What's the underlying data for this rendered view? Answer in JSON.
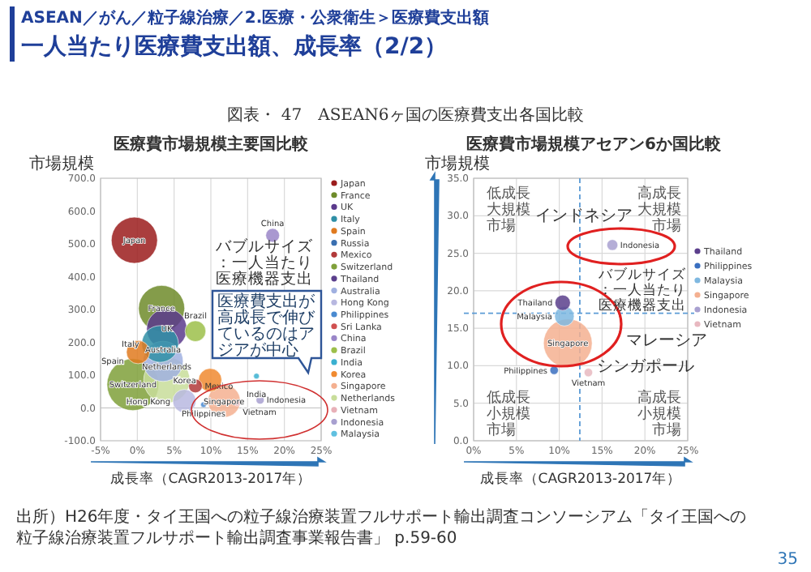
{
  "chart_data": [
    {
      "type": "bubble",
      "title": "医療費市場規模主要国比較",
      "xlabel": "成長率（CAGR2013-2017年）",
      "ylabel": "市場規模",
      "xlim": [
        -5,
        25
      ],
      "xticks": [
        {
          "value": -5,
          "label": "-5%"
        },
        {
          "value": 0,
          "label": "0%"
        },
        {
          "value": 5,
          "label": "5%"
        },
        {
          "value": 10,
          "label": "10%"
        },
        {
          "value": 15,
          "label": "15%"
        },
        {
          "value": 20,
          "label": "20%"
        },
        {
          "value": 25,
          "label": "25%"
        }
      ],
      "ylim": [
        -100,
        700
      ],
      "yticks": [
        {
          "value": -100,
          "label": "-100.0"
        },
        {
          "value": 0,
          "label": "0.0"
        },
        {
          "value": 100,
          "label": "100.0"
        },
        {
          "value": 200,
          "label": "200.0"
        },
        {
          "value": 300,
          "label": "300.0"
        },
        {
          "value": 400,
          "label": "400.0"
        },
        {
          "value": 500,
          "label": "500.0"
        },
        {
          "value": 600,
          "label": "600.0"
        },
        {
          "value": 700,
          "label": "700.0"
        }
      ],
      "grid": "x",
      "legend": "right",
      "series": [
        {
          "name": "Japan",
          "color": "#9b1c1c",
          "x": [
            -0.4
          ],
          "values": [
            511
          ],
          "sizes": [
            0.79
          ]
        },
        {
          "name": "France",
          "color": "#6e8b2a",
          "x": [
            3.3
          ],
          "values": [
            303
          ],
          "sizes": [
            0.79
          ]
        },
        {
          "name": "UK",
          "color": "#5b3a8c",
          "x": [
            4.0
          ],
          "values": [
            241
          ],
          "sizes": [
            0.6
          ]
        },
        {
          "name": "Italy",
          "color": "#2f8fa6",
          "x": [
            3.1
          ],
          "values": [
            195
          ],
          "sizes": [
            0.5
          ]
        },
        {
          "name": "Spain",
          "color": "#e07a1f",
          "x": [
            0.1
          ],
          "values": [
            170
          ],
          "sizes": [
            0.2
          ]
        },
        {
          "name": "Russia",
          "color": "#3a6fb0",
          "x": [
            null
          ],
          "values": [
            null
          ],
          "sizes": [
            null
          ]
        },
        {
          "name": "Mexico",
          "color": "#b23a3a",
          "x": [
            7.9
          ],
          "values": [
            67
          ],
          "sizes": [
            0.07
          ]
        },
        {
          "name": "Switzerland",
          "color": "#7fa03a",
          "x": [
            -0.6
          ],
          "values": [
            71
          ],
          "sizes": [
            1
          ]
        },
        {
          "name": "Thailand",
          "color": "#5b3f8c",
          "x": [
            null
          ],
          "values": [
            null
          ],
          "sizes": [
            null
          ]
        },
        {
          "name": "Australia",
          "color": "#a0b0e0",
          "x": [
            3.5
          ],
          "values": [
            142
          ],
          "sizes": [
            0.6
          ]
        },
        {
          "name": "Hong Kong",
          "color": "#b8b8e0",
          "x": [
            6.4
          ],
          "values": [
            21
          ],
          "sizes": [
            0.2
          ]
        },
        {
          "name": "Philippines",
          "color": "#4a8ad0",
          "x": [
            9.0
          ],
          "values": [
            10
          ],
          "sizes": [
            0.012
          ]
        },
        {
          "name": "Sri Lanka",
          "color": "#d05050",
          "x": [
            null
          ],
          "values": [
            null
          ],
          "sizes": [
            null
          ]
        },
        {
          "name": "China",
          "color": "#9a86c8",
          "x": [
            18.4
          ],
          "values": [
            526
          ],
          "sizes": [
            0.07
          ]
        },
        {
          "name": "Brazil",
          "color": "#9cbf4a",
          "x": [
            7.9
          ],
          "values": [
            234
          ],
          "sizes": [
            0.16
          ]
        },
        {
          "name": "India",
          "color": "#3ab0d0",
          "x": [
            16.2
          ],
          "values": [
            97
          ],
          "sizes": [
            0.012
          ]
        },
        {
          "name": "Korea",
          "color": "#f08a30",
          "x": [
            9.9
          ],
          "values": [
            85
          ],
          "sizes": [
            0.2
          ]
        },
        {
          "name": "Singapore",
          "color": "#f4b090",
          "x": [
            11.8
          ],
          "values": [
            21
          ],
          "sizes": [
            0.39
          ]
        },
        {
          "name": "Netherlands",
          "color": "#c8dd9a",
          "x": [
            4.0
          ],
          "values": [
            85
          ],
          "sizes": [
            0.79
          ]
        },
        {
          "name": "Vietnam",
          "color": "#e8b0b8",
          "x": [
            13.6
          ],
          "values": [
            14
          ],
          "sizes": [
            0.012
          ]
        },
        {
          "name": "Indonesia",
          "color": "#a8a0d0",
          "x": [
            16.7
          ],
          "values": [
            24
          ],
          "sizes": [
            0.024
          ]
        },
        {
          "name": "Malaysia",
          "color": "#60c0e0",
          "x": [
            null
          ],
          "values": [
            null
          ],
          "sizes": [
            null
          ]
        }
      ],
      "annotations": [
        "ASEAN／がん／粒子線治療／2.医療・公衆衛生＞医療費支出額",
        "一人当たり医療費支出額、成長率（2/2）",
        "図表・ 47　ASEAN6ヶ国の医療費支出各国比較",
        "バブルサイズ：一人当たり医療機器支出",
        "医療費支出が高成長で伸びているのはアジアが中心",
        "出所）H26年度・タイ王国への粒子線治療装置フルサポート輸出調査コンソーシアム「タイ王国への粒子線治療装置フルサポート輸出調査事業報告書」 p.59-60",
        "35"
      ]
    },
    {
      "type": "bubble",
      "title": "医療費市場規模アセアン6か国比較",
      "xlabel": "成長率（CAGR2013-2017年）",
      "ylabel": "市場規模",
      "xlim": [
        0,
        25
      ],
      "xticks": [
        {
          "value": 0,
          "label": "0%"
        },
        {
          "value": 5,
          "label": "5%"
        },
        {
          "value": 10,
          "label": "10%"
        },
        {
          "value": 15,
          "label": "15%"
        },
        {
          "value": 20,
          "label": "20%"
        },
        {
          "value": 25,
          "label": "25%"
        }
      ],
      "ylim": [
        0,
        35
      ],
      "yticks": [
        {
          "value": 0,
          "label": "0.0"
        },
        {
          "value": 5,
          "label": "5.0"
        },
        {
          "value": 10,
          "label": "10.0"
        },
        {
          "value": 15,
          "label": "15.0"
        },
        {
          "value": 20,
          "label": "20.0"
        },
        {
          "value": 25,
          "label": "25.0"
        },
        {
          "value": 30,
          "label": "30.0"
        },
        {
          "value": 35,
          "label": "35.0"
        }
      ],
      "grid": true,
      "legend": "right",
      "ref_lines": [
        {
          "axis": "x",
          "value": 12.4,
          "color": "#5b9bd5",
          "line_style": "dashed"
        },
        {
          "axis": "y",
          "value": 17,
          "color": "#5b9bd5",
          "line_style": "dashed"
        }
      ],
      "series": [
        {
          "name": "Thailand",
          "color": "#5b3f8c",
          "x": [
            10.4
          ],
          "values": [
            18.4
          ],
          "sizes": [
            0.1
          ]
        },
        {
          "name": "Philippines",
          "color": "#3a6fc0",
          "x": [
            9.4
          ],
          "values": [
            9.4
          ],
          "sizes": [
            0.03
          ]
        },
        {
          "name": "Malaysia",
          "color": "#7fb8e0",
          "x": [
            10.6
          ],
          "values": [
            16.6
          ],
          "sizes": [
            0.16
          ]
        },
        {
          "name": "Singapore",
          "color": "#f4b090",
          "x": [
            11.0
          ],
          "values": [
            13.0
          ],
          "sizes": [
            1
          ]
        },
        {
          "name": "Indonesia",
          "color": "#a8a0d0",
          "x": [
            16.2
          ],
          "values": [
            26.1
          ],
          "sizes": [
            0.05
          ]
        },
        {
          "name": "Vietnam",
          "color": "#e8b8c0",
          "x": [
            13.4
          ],
          "values": [
            9.1
          ],
          "sizes": [
            0.03
          ]
        }
      ],
      "annotations": [
        "低成長大規模市場",
        "高成長大規模市場",
        "低成長小規模市場",
        "高成長小規模市場",
        "インドネシア",
        "バブルサイズ：一人当たり医療機器支出",
        "マレーシア",
        "シンガポール"
      ]
    }
  ]
}
